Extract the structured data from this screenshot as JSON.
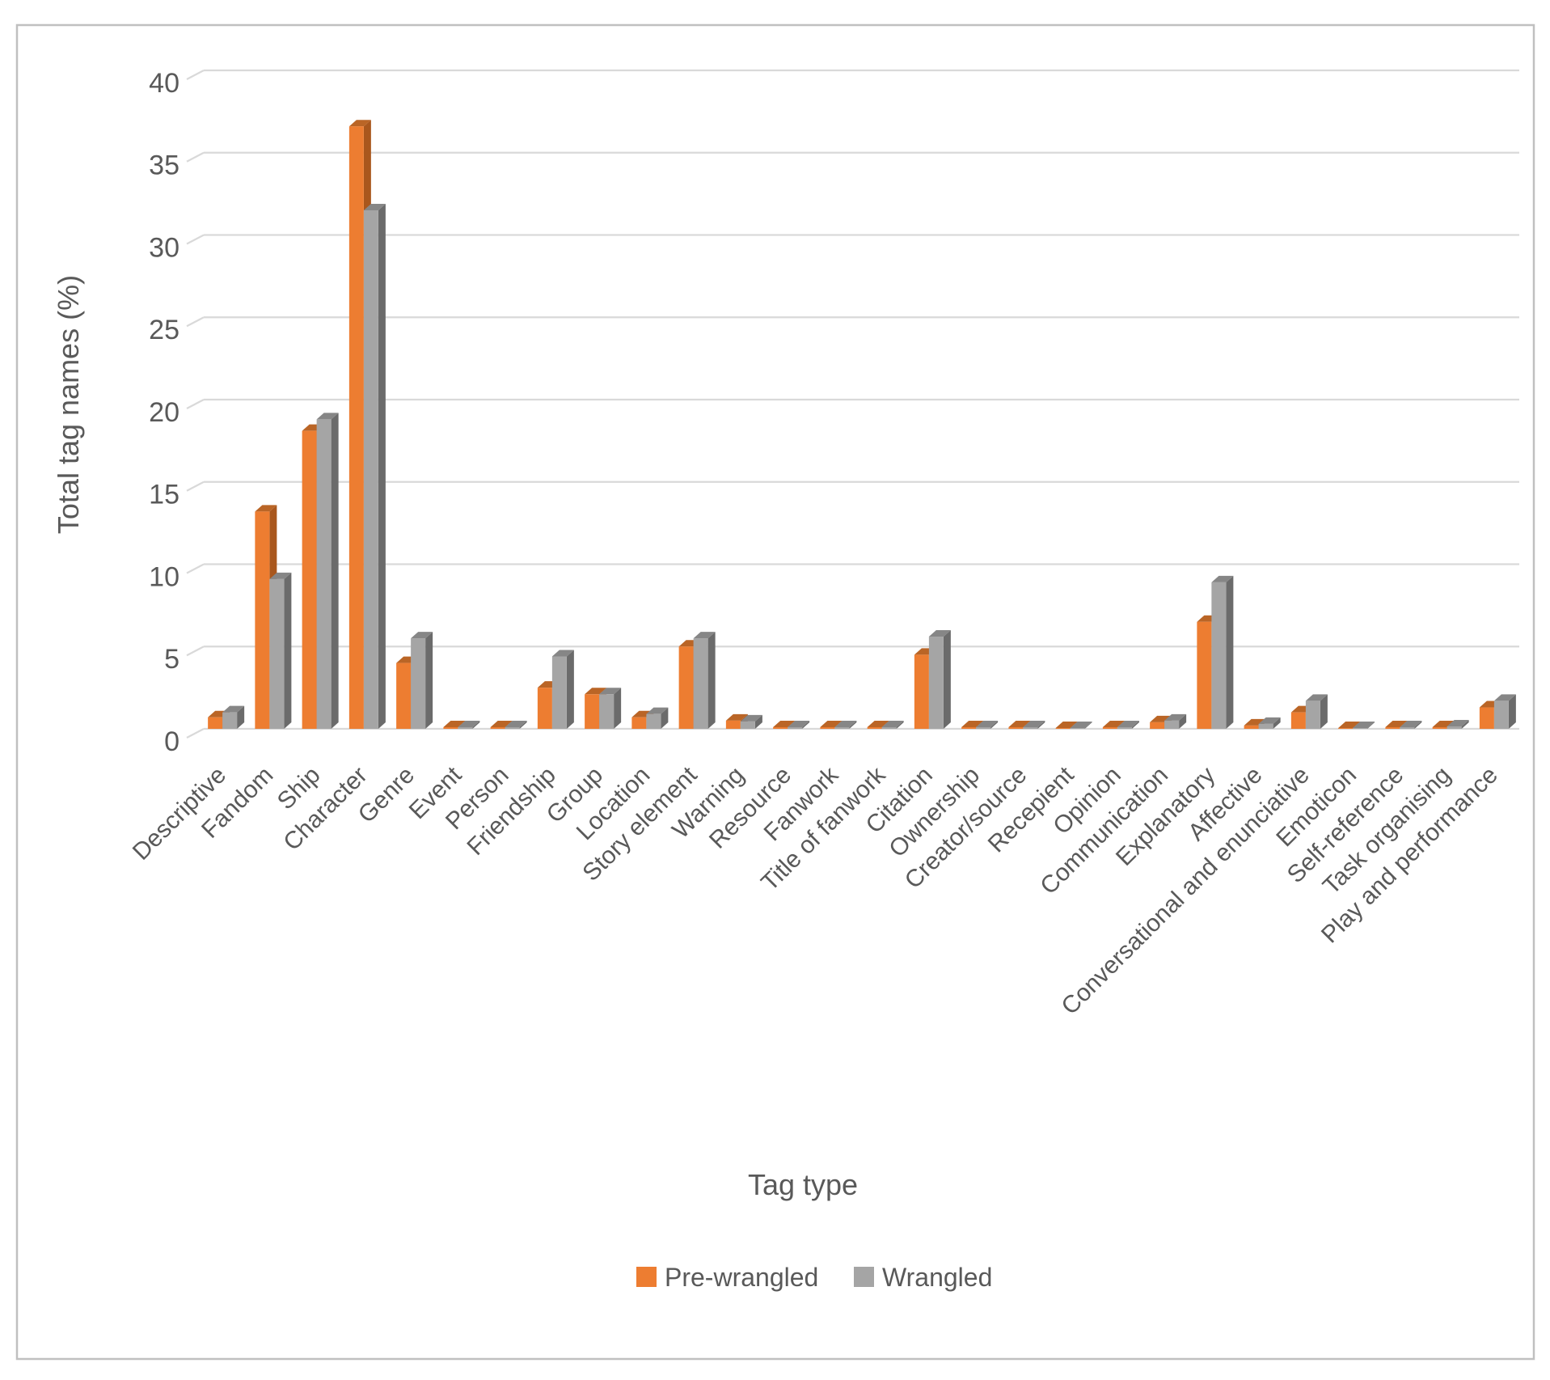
{
  "figure": {
    "background": "#FFFFFF",
    "border_color": "#C0C0C0",
    "axis_text_color": "#595959",
    "gridline_color": "#D9D9D9"
  },
  "legend": {
    "items": [
      {
        "label": "Pre-wrangled",
        "swatch_color": "#ED7D31"
      },
      {
        "label": "Wrangled",
        "swatch_color": "#A5A5A5"
      }
    ]
  },
  "chart_data": {
    "type": "bar",
    "effect": "3d-extruded-columns",
    "title": "",
    "xlabel": "Tag type",
    "ylabel": "Total tag names (%)",
    "ylim": [
      0,
      40
    ],
    "ytick_step": 5,
    "grid": true,
    "legend_position": "bottom-center",
    "categories": [
      "Descriptive",
      "Fandom",
      "Ship",
      "Character",
      "Genre",
      "Event",
      "Person",
      "Friendship",
      "Group",
      "Location",
      "Story element",
      "Warning",
      "Resource",
      "Fanwork",
      "Title of fanwork",
      "Citation",
      "Ownership",
      "Creator/source",
      "Recepient",
      "Opinion",
      "Communication",
      "Explanatory",
      "Affective",
      "Conversational and enunciative",
      "Emoticon",
      "Self-reference",
      "Task organising",
      "Play and performance"
    ],
    "series": [
      {
        "name": "Pre-wrangled",
        "color": "#ED7D31",
        "color_side": "#A9571D",
        "color_top": "#BA6526",
        "values": [
          0.7,
          13.2,
          18.1,
          36.6,
          4.0,
          0.1,
          0.1,
          2.5,
          2.1,
          0.7,
          5.0,
          0.5,
          0.1,
          0.1,
          0.1,
          4.5,
          0.1,
          0.1,
          0.05,
          0.1,
          0.4,
          6.5,
          0.2,
          1.0,
          0.05,
          0.1,
          0.1,
          1.3
        ]
      },
      {
        "name": "Wrangled",
        "color": "#A5A5A5",
        "color_side": "#6B6B6B",
        "color_top": "#868686",
        "values": [
          1.0,
          9.1,
          18.8,
          31.5,
          5.5,
          0.1,
          0.1,
          4.4,
          2.1,
          0.9,
          5.5,
          0.45,
          0.1,
          0.1,
          0.1,
          5.6,
          0.1,
          0.1,
          0.05,
          0.1,
          0.5,
          8.9,
          0.3,
          1.7,
          0.05,
          0.1,
          0.15,
          1.7
        ]
      }
    ]
  }
}
